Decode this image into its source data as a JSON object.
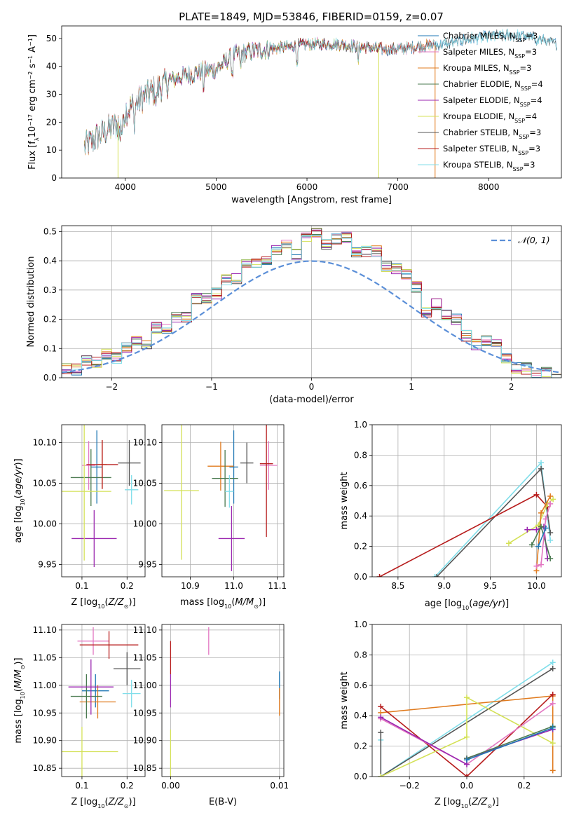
{
  "figure": {
    "title": "PLATE=1849, MJD=53846, FIBERID=0159, z=0.07"
  },
  "colors": {
    "chabrier_miles": "#1f77b4",
    "salpeter_miles": "#e377c2",
    "kroupa_miles": "#e07b1f",
    "chabrier_elodie": "#4a7a50",
    "salpeter_elodie": "#9b27b0",
    "kroupa_elodie": "#d4e157",
    "chabrier_stelib": "#555555",
    "salpeter_stelib": "#b71c1c",
    "kroupa_stelib": "#80deea",
    "normal": "#5b8fd8"
  },
  "chart_data": [
    {
      "id": "spectrum",
      "type": "line",
      "xlabel": "wavelength [Angstrom, rest frame]",
      "ylabel": "Flux [f_λ10^-17 erg cm^-2 s^-1 A^-1]",
      "xlim": [
        3300,
        8800
      ],
      "ylim": [
        0,
        54.5
      ],
      "xticks": [
        4000,
        5000,
        6000,
        7000,
        8000
      ],
      "yticks": [
        0,
        10,
        20,
        30,
        40,
        50
      ],
      "grid": false,
      "legend_position": "top-right",
      "wavelength_range": [
        3550,
        8750
      ],
      "continuum_points": [
        [
          3550,
          11
        ],
        [
          3700,
          15
        ],
        [
          3900,
          19
        ],
        [
          4000,
          24
        ],
        [
          4200,
          29
        ],
        [
          4500,
          35
        ],
        [
          4800,
          38
        ],
        [
          5000,
          39
        ],
        [
          5200,
          44
        ],
        [
          5500,
          46
        ],
        [
          5800,
          47
        ],
        [
          6000,
          48
        ],
        [
          6300,
          48
        ],
        [
          6600,
          47
        ],
        [
          6900,
          46
        ],
        [
          7200,
          47
        ],
        [
          7500,
          48
        ],
        [
          7800,
          50
        ],
        [
          8100,
          51
        ],
        [
          8400,
          51
        ],
        [
          8750,
          48
        ]
      ],
      "series": [
        {
          "label": "Chabrier MILES, N",
          "sub": "SSP",
          "suffix": "=3",
          "color_key": "chabrier_miles",
          "end": 8750
        },
        {
          "label": "Salpeter MILES, N",
          "sub": "SSP",
          "suffix": "=3",
          "color_key": "salpeter_miles",
          "end": 7400
        },
        {
          "label": "Kroupa MILES, N",
          "sub": "SSP",
          "suffix": "=3",
          "color_key": "kroupa_miles",
          "end": 7400
        },
        {
          "label": "Chabrier ELODIE, N",
          "sub": "SSP",
          "suffix": "=4",
          "color_key": "chabrier_elodie",
          "end": 6800
        },
        {
          "label": "Salpeter ELODIE, N",
          "sub": "SSP",
          "suffix": "=4",
          "color_key": "salpeter_elodie",
          "end": 6800
        },
        {
          "label": "Kroupa ELODIE, N",
          "sub": "SSP",
          "suffix": "=4",
          "color_key": "kroupa_elodie",
          "end": 6800
        },
        {
          "label": "Chabrier STELIB, N",
          "sub": "SSP",
          "suffix": "=3",
          "color_key": "chabrier_stelib",
          "end": 8750
        },
        {
          "label": "Salpeter STELIB, N",
          "sub": "SSP",
          "suffix": "=3",
          "color_key": "salpeter_stelib",
          "end": 7400
        },
        {
          "label": "Kroupa STELIB, N",
          "sub": "SSP",
          "suffix": "=3",
          "color_key": "kroupa_stelib",
          "end": 8750
        }
      ],
      "drops_to_zero": [
        3920,
        6790,
        7410
      ]
    },
    {
      "id": "residuals",
      "type": "histogram",
      "xlabel": "(data-model)/error",
      "ylabel": "Normed distribution",
      "xlim": [
        -2.5,
        2.5
      ],
      "ylim": [
        0,
        0.52
      ],
      "xticks": [
        -2,
        -1,
        0,
        1,
        2
      ],
      "yticks": [
        0.0,
        0.1,
        0.2,
        0.3,
        0.4,
        0.5
      ],
      "grid": true,
      "legend_position": "top-right",
      "legend_label": "𝒩(0, 1)",
      "bin_width": 0.1,
      "bins_from": -2.5,
      "perturbations": [
        0.004,
        -0.01,
        0.015,
        -0.006,
        0.02,
        -0.014,
        0.008,
        0.012,
        -0.018,
        0.025,
        -0.004,
        0.01,
        -0.02,
        0.03,
        0.005,
        -0.012,
        0.018,
        -0.008,
        0.022,
        0.002,
        -0.016,
        0.012,
        0.035,
        -0.025,
        0.04,
        0.06,
        0.02,
        0.05,
        0.07,
        0.03,
        0.055,
        0.08,
        0.045,
        0.065,
        0.07,
        0.05,
        -0.03,
        0.04,
        0.02,
        0.035,
        -0.01,
        -0.02,
        0.015,
        0.025,
        -0.02,
        -0.04,
        -0.03,
        -0.05,
        -0.02,
        -0.045
      ]
    },
    {
      "id": "z_vs_age",
      "type": "errorbar",
      "xlabel": "Z [log10(Z/Z⊙)]",
      "ylabel": "age [log10(age/yr)]",
      "xlim": [
        0.055,
        0.24
      ],
      "ylim": [
        9.935,
        10.122
      ],
      "xticks": [
        0.1,
        0.2
      ],
      "yticks": [
        9.95,
        10.0,
        10.05,
        10.1
      ],
      "grid": true,
      "points": [
        {
          "c": "chabrier_miles",
          "x": 0.133,
          "y": 10.07,
          "ex": 0.013,
          "ey": 0.045
        },
        {
          "c": "salpeter_miles",
          "x": 0.115,
          "y": 10.072,
          "ex": 0.015,
          "ey": 0.03
        },
        {
          "c": "kroupa_miles",
          "x": 0.145,
          "y": 10.073,
          "ex": 0.01,
          "ey": 0.03
        },
        {
          "c": "chabrier_elodie",
          "x": 0.12,
          "y": 10.057,
          "ex": 0.045,
          "ey": 0.035
        },
        {
          "c": "salpeter_elodie",
          "x": 0.127,
          "y": 9.982,
          "ex": 0.05,
          "ey": 0.035
        },
        {
          "c": "kroupa_elodie",
          "x": 0.105,
          "y": 10.04,
          "ex": 0.06,
          "ey": 0.085
        },
        {
          "c": "chabrier_stelib",
          "x": 0.205,
          "y": 10.075,
          "ex": 0.025,
          "ey": 0.028
        },
        {
          "c": "salpeter_stelib",
          "x": 0.145,
          "y": 10.073,
          "ex": 0.035,
          "ey": 0.03
        },
        {
          "c": "kroupa_stelib",
          "x": 0.21,
          "y": 10.042,
          "ex": 0.015,
          "ey": 0.018
        }
      ]
    },
    {
      "id": "mass_vs_age",
      "type": "errorbar",
      "xlabel": "mass [log10(M/M⊙)]",
      "ylabel": "",
      "xlim": [
        10.835,
        11.115
      ],
      "ylim": [
        9.935,
        10.122
      ],
      "xticks": [
        10.9,
        11.0,
        11.1
      ],
      "yticks": [
        9.95,
        10.0,
        10.05,
        10.1
      ],
      "grid": true,
      "points": [
        {
          "c": "chabrier_miles",
          "x": 11.0,
          "y": 10.07,
          "ex": 0.01,
          "ey": 0.045
        },
        {
          "c": "salpeter_miles",
          "x": 11.08,
          "y": 10.072,
          "ex": 0.02,
          "ey": 0.03
        },
        {
          "c": "kroupa_miles",
          "x": 10.97,
          "y": 10.071,
          "ex": 0.03,
          "ey": 0.03
        },
        {
          "c": "chabrier_elodie",
          "x": 10.98,
          "y": 10.056,
          "ex": 0.03,
          "ey": 0.035
        },
        {
          "c": "salpeter_elodie",
          "x": 10.995,
          "y": 9.982,
          "ex": 0.03,
          "ey": 0.04
        },
        {
          "c": "kroupa_elodie",
          "x": 10.88,
          "y": 10.041,
          "ex": 0.04,
          "ey": 0.085
        },
        {
          "c": "chabrier_stelib",
          "x": 11.03,
          "y": 10.075,
          "ex": 0.015,
          "ey": 0.025
        },
        {
          "c": "salpeter_stelib",
          "x": 11.075,
          "y": 10.074,
          "ex": 0.015,
          "ey": 0.09
        },
        {
          "c": "kroupa_stelib",
          "x": 10.99,
          "y": 10.04,
          "ex": 0.01,
          "ey": 0.02
        }
      ]
    },
    {
      "id": "weights_age",
      "type": "line",
      "xlabel": "age [log10(age/yr)]",
      "ylabel": "mass weight",
      "xlim": [
        8.22,
        10.27
      ],
      "ylim": [
        0,
        1.0
      ],
      "xticks": [
        8.5,
        9.0,
        9.5,
        10.0
      ],
      "yticks": [
        0.0,
        0.2,
        0.4,
        0.6,
        0.8,
        1.0
      ],
      "grid": true,
      "series": [
        {
          "c": "kroupa_stelib",
          "pts": [
            [
              8.9,
              0.0
            ],
            [
              10.05,
              0.75
            ],
            [
              10.15,
              0.24
            ]
          ]
        },
        {
          "c": "chabrier_stelib",
          "pts": [
            [
              8.92,
              0.0
            ],
            [
              10.05,
              0.71
            ],
            [
              10.15,
              0.29
            ]
          ]
        },
        {
          "c": "salpeter_stelib",
          "pts": [
            [
              8.3,
              0.0
            ],
            [
              10.0,
              0.54
            ],
            [
              10.12,
              0.46
            ]
          ]
        },
        {
          "c": "kroupa_elodie",
          "pts": [
            [
              9.7,
              0.22
            ],
            [
              10.02,
              0.34
            ],
            [
              10.12,
              0.48
            ],
            [
              10.18,
              0.51
            ]
          ]
        },
        {
          "c": "kroupa_miles",
          "pts": [
            [
              10.0,
              0.04
            ],
            [
              10.05,
              0.42
            ],
            [
              10.15,
              0.53
            ]
          ]
        },
        {
          "c": "salpeter_elodie",
          "pts": [
            [
              9.9,
              0.31
            ],
            [
              10.0,
              0.31
            ],
            [
              10.08,
              0.33
            ],
            [
              10.12,
              0.12
            ]
          ]
        },
        {
          "c": "chabrier_elodie",
          "pts": [
            [
              9.95,
              0.21
            ],
            [
              10.05,
              0.33
            ],
            [
              10.15,
              0.12
            ]
          ]
        },
        {
          "c": "salpeter_miles",
          "pts": [
            [
              10.0,
              0.07
            ],
            [
              10.05,
              0.08
            ],
            [
              10.1,
              0.38
            ],
            [
              10.15,
              0.48
            ]
          ]
        },
        {
          "c": "chabrier_miles",
          "pts": [
            [
              10.02,
              0.2
            ],
            [
              10.1,
              0.32
            ]
          ]
        }
      ]
    },
    {
      "id": "z_vs_mass",
      "type": "errorbar",
      "xlabel": "Z [log10(Z/Z⊙)]",
      "ylabel": "mass [log10(M/M⊙)]",
      "xlim": [
        0.055,
        0.24
      ],
      "ylim": [
        10.835,
        11.11
      ],
      "xticks": [
        0.1,
        0.2
      ],
      "yticks": [
        10.85,
        10.9,
        10.95,
        11.0,
        11.05,
        11.1
      ],
      "grid": true,
      "points": [
        {
          "c": "chabrier_miles",
          "x": 0.13,
          "y": 10.99,
          "ex": 0.03,
          "ey": 0.03
        },
        {
          "c": "salpeter_miles",
          "x": 0.125,
          "y": 11.08,
          "ex": 0.035,
          "ey": 0.025
        },
        {
          "c": "kroupa_miles",
          "x": 0.135,
          "y": 10.97,
          "ex": 0.04,
          "ey": 0.03
        },
        {
          "c": "chabrier_elodie",
          "x": 0.11,
          "y": 10.98,
          "ex": 0.035,
          "ey": 0.04
        },
        {
          "c": "salpeter_elodie",
          "x": 0.12,
          "y": 10.997,
          "ex": 0.05,
          "ey": 0.05
        },
        {
          "c": "kroupa_elodie",
          "x": 0.1,
          "y": 10.88,
          "ex": 0.08,
          "ey": 0.045
        },
        {
          "c": "chabrier_stelib",
          "x": 0.2,
          "y": 11.03,
          "ex": 0.03,
          "ey": 0.03
        },
        {
          "c": "salpeter_stelib",
          "x": 0.16,
          "y": 11.073,
          "ex": 0.065,
          "ey": 0.025
        },
        {
          "c": "kroupa_stelib",
          "x": 0.21,
          "y": 10.985,
          "ex": 0.02,
          "ey": 0.025
        }
      ]
    },
    {
      "id": "ebv_vs_mass",
      "type": "errorbar",
      "xlabel": "E(B-V)",
      "ylabel": "",
      "xlim": [
        -0.0008,
        0.0104
      ],
      "ylim": [
        10.835,
        11.11
      ],
      "xticks": [
        0.0,
        0.01
      ],
      "tick_labels": [
        "0.00",
        "0.01"
      ],
      "yticks": [
        10.85,
        10.9,
        10.95,
        11.0,
        11.05,
        11.1
      ],
      "grid": true,
      "points": [
        {
          "c": "salpeter_miles",
          "x": 0.0035,
          "y": 11.08,
          "ex": 0.0,
          "ey": 0.025
        },
        {
          "c": "salpeter_stelib",
          "x": 0.0,
          "y": 11.05,
          "ex": 0.0,
          "ey": 0.03
        },
        {
          "c": "chabrier_miles",
          "x": 0.01,
          "y": 11.0,
          "ex": 0.0,
          "ey": 0.025
        },
        {
          "c": "kroupa_miles",
          "x": 0.01,
          "y": 10.97,
          "ex": 0.0,
          "ey": 0.025
        },
        {
          "c": "kroupa_elodie",
          "x": 0.0,
          "y": 10.87,
          "ex": 0.0,
          "ey": 0.05
        },
        {
          "c": "salpeter_elodie",
          "x": 0.0,
          "y": 10.99,
          "ex": 0.0,
          "ey": 0.03
        }
      ]
    },
    {
      "id": "weights_z",
      "type": "line",
      "xlabel": "Z [log10(Z/Z⊙)]",
      "ylabel": "mass weight",
      "xlim": [
        -0.33,
        0.33
      ],
      "ylim": [
        0,
        1.0
      ],
      "xticks": [
        -0.2,
        0.0,
        0.2
      ],
      "yticks": [
        0.0,
        0.2,
        0.4,
        0.6,
        0.8,
        1.0
      ],
      "grid": true,
      "series": [
        {
          "c": "kroupa_stelib",
          "pts": [
            [
              -0.3,
              0.24
            ],
            [
              -0.3,
              0.0
            ],
            [
              0.3,
              0.75
            ]
          ]
        },
        {
          "c": "chabrier_stelib",
          "pts": [
            [
              -0.3,
              0.29
            ],
            [
              -0.3,
              0.0
            ],
            [
              0.3,
              0.71
            ]
          ]
        },
        {
          "c": "kroupa_miles",
          "pts": [
            [
              -0.3,
              0.42
            ],
            [
              0.3,
              0.53
            ],
            [
              0.3,
              0.04
            ]
          ]
        },
        {
          "c": "salpeter_stelib",
          "pts": [
            [
              -0.3,
              0.46
            ],
            [
              0.0,
              0.0
            ],
            [
              0.3,
              0.54
            ]
          ]
        },
        {
          "c": "kroupa_elodie",
          "pts": [
            [
              -0.3,
              0.0
            ],
            [
              0.0,
              0.26
            ],
            [
              0.0,
              0.52
            ],
            [
              0.3,
              0.22
            ]
          ]
        },
        {
          "c": "salpeter_miles",
          "pts": [
            [
              -0.3,
              0.38
            ],
            [
              0.0,
              0.08
            ],
            [
              0.3,
              0.48
            ]
          ]
        },
        {
          "c": "salpeter_elodie",
          "pts": [
            [
              -0.3,
              0.39
            ],
            [
              0.0,
              0.08
            ],
            [
              0.0,
              0.12
            ],
            [
              0.3,
              0.31
            ]
          ]
        },
        {
          "c": "chabrier_elodie",
          "pts": [
            [
              0.0,
              0.12
            ],
            [
              0.3,
              0.33
            ]
          ]
        },
        {
          "c": "chabrier_miles",
          "pts": [
            [
              0.0,
              0.11
            ],
            [
              0.3,
              0.32
            ]
          ]
        }
      ]
    }
  ]
}
